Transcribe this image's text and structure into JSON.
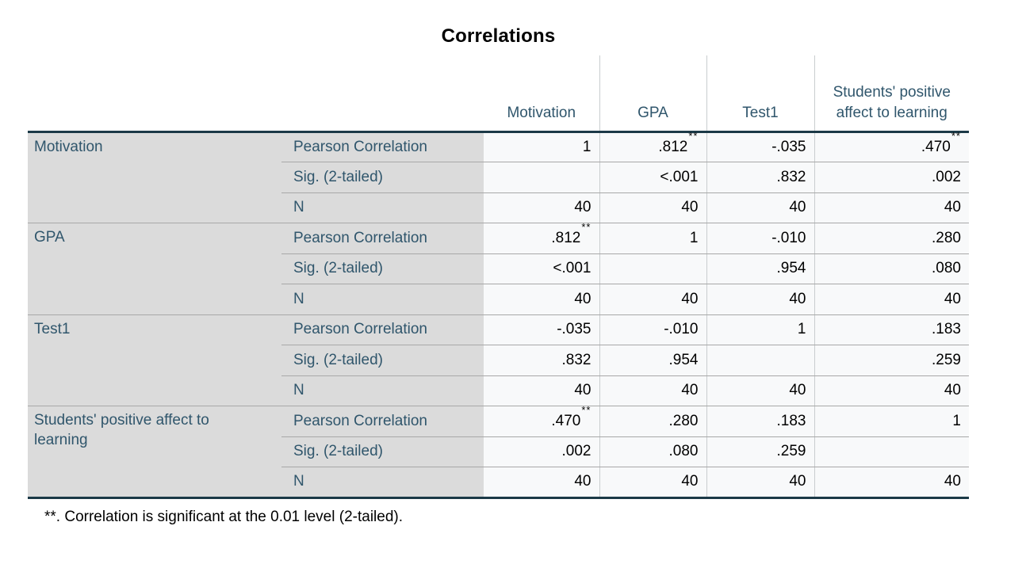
{
  "title": "Correlations",
  "footnote": "**. Correlation is significant at the 0.01 level (2-tailed).",
  "table": {
    "column_headers": [
      "Motivation",
      "GPA",
      "Test1",
      "Students' positive affect to learning"
    ],
    "statistic_rows": [
      "Pearson Correlation",
      "Sig. (2-tailed)",
      "N"
    ],
    "groups": [
      {
        "label": "Motivation",
        "cells": [
          [
            "1",
            ".812**",
            "-.035",
            ".470**"
          ],
          [
            "",
            "<.001",
            ".832",
            ".002"
          ],
          [
            "40",
            "40",
            "40",
            "40"
          ]
        ]
      },
      {
        "label": "GPA",
        "cells": [
          [
            ".812**",
            "1",
            "-.010",
            ".280"
          ],
          [
            "<.001",
            "",
            ".954",
            ".080"
          ],
          [
            "40",
            "40",
            "40",
            "40"
          ]
        ]
      },
      {
        "label": "Test1",
        "cells": [
          [
            "-.035",
            "-.010",
            "1",
            ".183"
          ],
          [
            ".832",
            ".954",
            "",
            ".259"
          ],
          [
            "40",
            "40",
            "40",
            "40"
          ]
        ]
      },
      {
        "label": "Students' positive affect to learning",
        "cells": [
          [
            ".470**",
            ".280",
            ".183",
            "1"
          ],
          [
            ".002",
            ".080",
            ".259",
            ""
          ],
          [
            "40",
            "40",
            "40",
            "40"
          ]
        ]
      }
    ]
  },
  "colors": {
    "label_text": "#30566C",
    "value_text": "#000000",
    "title_text": "#000000",
    "label_background": "#DBDBDB",
    "cell_background": "#F8F9FA",
    "heavy_border": "#1B3947",
    "thin_border": "#A8A8A8",
    "column_border": "#C9CDCF"
  }
}
